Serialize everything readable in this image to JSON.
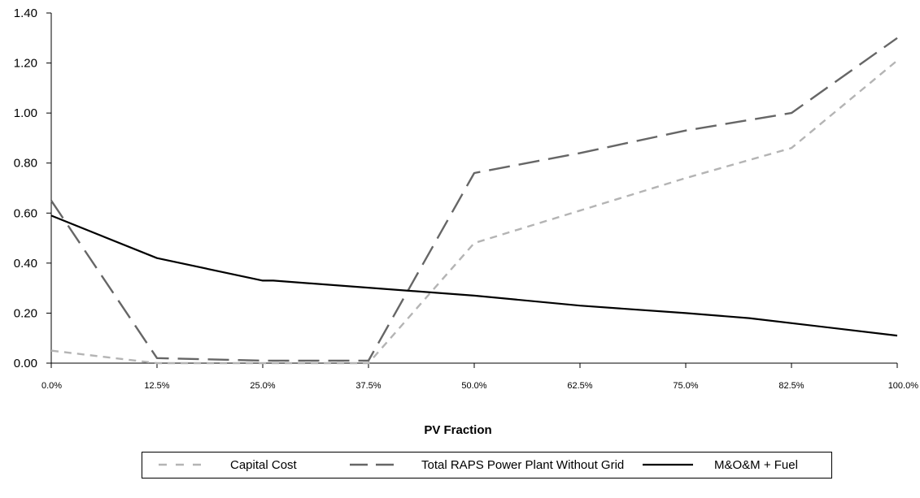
{
  "chart_data": {
    "type": "line",
    "title": "",
    "xlabel": "PV Fraction",
    "ylabel": "",
    "categories": [
      "0.0%",
      "12.5%",
      "25.0%",
      "37.5%",
      "50.0%",
      "62.5%",
      "75.0%",
      "82.5%",
      "100.0%"
    ],
    "y_ticks": [
      "0.00",
      "0.20",
      "0.40",
      "0.60",
      "0.80",
      "1.00",
      "1.20",
      "1.40"
    ],
    "ylim": [
      0,
      1.4
    ],
    "grid": false,
    "legend_position": "bottom",
    "series": [
      {
        "name": "Capital Cost",
        "style": "short-dash",
        "color": "#b4b4b4",
        "points": [
          [
            0,
            0.05
          ],
          [
            1,
            0.0
          ],
          [
            2,
            0.0
          ],
          [
            3,
            0.0
          ],
          [
            4,
            0.48
          ],
          [
            5,
            0.61
          ],
          [
            6,
            0.74
          ],
          [
            7,
            0.86
          ],
          [
            8,
            1.21
          ]
        ]
      },
      {
        "name": "Total RAPS Power Plant Without Grid",
        "style": "long-dash",
        "color": "#666666",
        "points": [
          [
            0,
            0.65
          ],
          [
            1,
            0.02
          ],
          [
            2,
            0.01
          ],
          [
            3,
            0.01
          ],
          [
            4,
            0.76
          ],
          [
            5,
            0.84
          ],
          [
            6,
            0.93
          ],
          [
            7,
            1.0
          ],
          [
            8,
            1.3
          ]
        ]
      },
      {
        "name": "M&O&M + Fuel",
        "style": "solid",
        "color": "#000000",
        "points": [
          [
            0,
            0.59
          ],
          [
            1,
            0.42
          ],
          [
            2,
            0.33
          ],
          [
            2.1,
            0.33
          ],
          [
            4,
            0.27
          ],
          [
            5,
            0.23
          ],
          [
            6,
            0.2
          ],
          [
            6.6,
            0.18
          ],
          [
            8,
            0.11
          ]
        ]
      }
    ]
  }
}
